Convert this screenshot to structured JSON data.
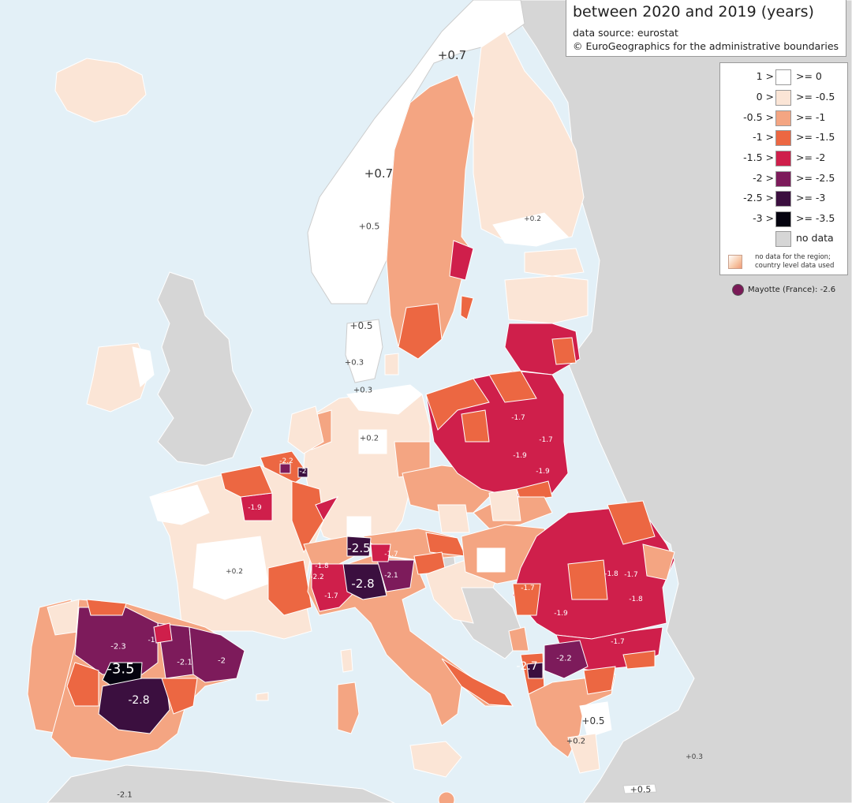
{
  "title": {
    "line2": "between 2020 and 2019 (years)",
    "source": "data source: eurostat",
    "copyright": "© EuroGeographics for the administrative boundaries"
  },
  "legend": {
    "classes": [
      {
        "upper": "1 >",
        "lower": ">= 0",
        "color": "#ffffff"
      },
      {
        "upper": "0 >",
        "lower": ">= -0.5",
        "color": "#fbe5d6"
      },
      {
        "upper": "-0.5 >",
        "lower": ">= -1",
        "color": "#f4a582"
      },
      {
        "upper": "-1 >",
        "lower": ">= -1.5",
        "color": "#ec6742"
      },
      {
        "upper": "-1.5 >",
        "lower": ">= -2",
        "color": "#cf1f4b"
      },
      {
        "upper": "-2 >",
        "lower": ">= -2.5",
        "color": "#7d1b5b"
      },
      {
        "upper": "-2.5 >",
        "lower": ">= -3",
        "color": "#3b0f3f"
      },
      {
        "upper": "-3 >",
        "lower": ">= -3.5",
        "color": "#05030f"
      },
      {
        "upper": "",
        "lower": "no data",
        "color": "#d6d6d6"
      }
    ],
    "note": "no data for the region; country level data used",
    "mayotte": {
      "label": "Mayotte (France): -2.6",
      "color": "#7a1a57"
    }
  },
  "colors": {
    "sea": "#e3f0f7",
    "no_data_land": "#d6d6d6",
    "border": "#ffffff"
  },
  "region_values": [
    {
      "id": "norway-north",
      "label": "+0.7"
    },
    {
      "id": "norway-mid",
      "label": "+0.7"
    },
    {
      "id": "norway-south",
      "label": "+0.5"
    },
    {
      "id": "finland-south",
      "label": "+0.2"
    },
    {
      "id": "denmark-1",
      "label": "+0.5"
    },
    {
      "id": "denmark-2",
      "label": "+0.3"
    },
    {
      "id": "denmark-3",
      "label": "+0.3"
    },
    {
      "id": "germany",
      "label": "+0.2"
    },
    {
      "id": "belgium-brussels",
      "label": "-2.2"
    },
    {
      "id": "luxembourg",
      "label": "-2"
    },
    {
      "id": "france-east",
      "label": "-1.9"
    },
    {
      "id": "france-west",
      "label": "+0.2"
    },
    {
      "id": "poland-1",
      "label": "-1.7"
    },
    {
      "id": "poland-2",
      "label": "-1.7"
    },
    {
      "id": "poland-3",
      "label": "-1.9"
    },
    {
      "id": "poland-4",
      "label": "-1.9"
    },
    {
      "id": "bolzano",
      "label": "-2.5"
    },
    {
      "id": "trento",
      "label": "-1.7"
    },
    {
      "id": "lombardy",
      "label": "-2.8"
    },
    {
      "id": "piedmont-1",
      "label": "-1.8"
    },
    {
      "id": "piedmont-2",
      "label": "-2.2"
    },
    {
      "id": "liguria",
      "label": "-1.7"
    },
    {
      "id": "veneto",
      "label": "-2.1"
    },
    {
      "id": "romania-1",
      "label": "-1.8"
    },
    {
      "id": "romania-2",
      "label": "-1.7"
    },
    {
      "id": "romania-3",
      "label": "-1.7"
    },
    {
      "id": "romania-4",
      "label": "-1.8"
    },
    {
      "id": "romania-5",
      "label": "-1.9"
    },
    {
      "id": "bulgaria",
      "label": "-1.7"
    },
    {
      "id": "north-macedonia",
      "label": "-2.2"
    },
    {
      "id": "albania",
      "label": "-2.7"
    },
    {
      "id": "spain-castilla-leon",
      "label": "-2.3"
    },
    {
      "id": "spain-madrid",
      "label": "-3.5"
    },
    {
      "id": "spain-la-rioja",
      "label": "-1"
    },
    {
      "id": "spain-aragon",
      "label": "-2.1"
    },
    {
      "id": "spain-catalonia",
      "label": "-2"
    },
    {
      "id": "spain-castilla-la-mancha",
      "label": "-2.8"
    },
    {
      "id": "greece-1",
      "label": "+0.5"
    },
    {
      "id": "greece-2",
      "label": "+0.2"
    },
    {
      "id": "greece-3",
      "label": "+0.3"
    },
    {
      "id": "greece-4",
      "label": "+0.5"
    },
    {
      "id": "north-africa",
      "label": "-2.1"
    }
  ]
}
